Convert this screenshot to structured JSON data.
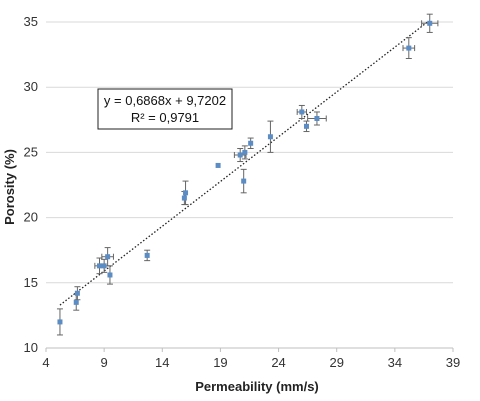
{
  "chart_data": {
    "type": "scatter",
    "xlabel": "Permeability (mm/s)",
    "ylabel": "Porosity (%)",
    "xlim": [
      4,
      39
    ],
    "ylim": [
      10,
      35
    ],
    "x_ticks": [
      "4",
      "9",
      "14",
      "19",
      "24",
      "29",
      "34",
      "39"
    ],
    "y_ticks": [
      "10",
      "15",
      "20",
      "25",
      "30",
      "35"
    ],
    "grid": "horizontal",
    "marker_color": "#5b8cc4",
    "errorbar_color": "#666666",
    "trendline": {
      "style": "dotted",
      "equation": "y = 0,6868x + 9,7202",
      "r_squared": "R² = 0,9791",
      "slope": 0.6868,
      "intercept": 9.7202,
      "x_range": [
        5.2,
        36.8
      ]
    },
    "points": [
      {
        "x": 5.2,
        "y": 12.0,
        "xerr": 0,
        "yerr": 1.0
      },
      {
        "x": 6.6,
        "y": 13.5,
        "xerr": 0,
        "yerr": 0.6
      },
      {
        "x": 6.7,
        "y": 14.2,
        "xerr": 0,
        "yerr": 0.5
      },
      {
        "x": 8.6,
        "y": 16.3,
        "xerr": 0.4,
        "yerr": 0.6
      },
      {
        "x": 9.0,
        "y": 16.3,
        "xerr": 0,
        "yerr": 0.5
      },
      {
        "x": 9.3,
        "y": 17.0,
        "xerr": 0.5,
        "yerr": 0.7
      },
      {
        "x": 9.5,
        "y": 15.6,
        "xerr": 0,
        "yerr": 0.7
      },
      {
        "x": 12.7,
        "y": 17.1,
        "xerr": 0,
        "yerr": 0.4
      },
      {
        "x": 15.9,
        "y": 21.5,
        "xerr": 0,
        "yerr": 0.5
      },
      {
        "x": 16.0,
        "y": 21.9,
        "xerr": 0,
        "yerr": 0.9
      },
      {
        "x": 18.8,
        "y": 24.0,
        "xerr": 0,
        "yerr": 0
      },
      {
        "x": 20.7,
        "y": 24.8,
        "xerr": 0.5,
        "yerr": 0.5
      },
      {
        "x": 21.0,
        "y": 22.8,
        "xerr": 0,
        "yerr": 0.9
      },
      {
        "x": 21.1,
        "y": 25.0,
        "xerr": 0,
        "yerr": 0.5
      },
      {
        "x": 21.6,
        "y": 25.7,
        "xerr": 0,
        "yerr": 0.4
      },
      {
        "x": 23.3,
        "y": 26.2,
        "xerr": 0,
        "yerr": 1.2
      },
      {
        "x": 26.0,
        "y": 28.1,
        "xerr": 0.4,
        "yerr": 0.5
      },
      {
        "x": 26.4,
        "y": 27.0,
        "xerr": 0,
        "yerr": 0.4
      },
      {
        "x": 27.3,
        "y": 27.6,
        "xerr": 0.8,
        "yerr": 0.5
      },
      {
        "x": 35.2,
        "y": 33.0,
        "xerr": 0.5,
        "yerr": 0.8
      },
      {
        "x": 37.0,
        "y": 34.9,
        "xerr": 0.7,
        "yerr": 0.7
      }
    ]
  }
}
